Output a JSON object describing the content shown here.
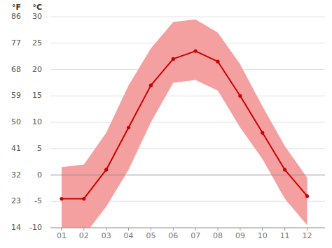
{
  "chart_data": {
    "type": "line",
    "x": [
      1,
      2,
      3,
      4,
      5,
      6,
      7,
      8,
      9,
      10,
      11,
      12
    ],
    "xlim": [
      0.5,
      12.8
    ],
    "xticks": [
      {
        "value": 1,
        "label": "01"
      },
      {
        "value": 2,
        "label": "02"
      },
      {
        "value": 3,
        "label": "03"
      },
      {
        "value": 4,
        "label": "04"
      },
      {
        "value": 5,
        "label": "05"
      },
      {
        "value": 6,
        "label": "06"
      },
      {
        "value": 7,
        "label": "07"
      },
      {
        "value": 8,
        "label": "08"
      },
      {
        "value": 9,
        "label": "09"
      },
      {
        "value": 10,
        "label": "10"
      },
      {
        "value": 11,
        "label": "11"
      },
      {
        "value": 12,
        "label": "12"
      }
    ],
    "series": [
      {
        "type": "area_range",
        "color": "#f5a0a0",
        "values": [
          1.5,
          2.0,
          8.0,
          17.0,
          24.0,
          29.0,
          29.5,
          27.0,
          21.0,
          13.0,
          5.5,
          -0.5
        ],
        "low": [
          -11.0,
          -11.5,
          -6.0,
          1.0,
          10.0,
          17.5,
          18.0,
          16.0,
          9.0,
          3.0,
          -4.5,
          -9.5
        ]
      },
      {
        "type": "line",
        "color": "#cc0000",
        "marker": "circle",
        "line_style": "solid",
        "values": [
          -4.5,
          -4.5,
          1.0,
          9.0,
          17.0,
          22.0,
          23.5,
          21.5,
          15.0,
          8.0,
          1.0,
          -4.0
        ]
      }
    ],
    "y_label": "°C",
    "ylim": [
      -10,
      30
    ],
    "yticks": [
      -10,
      -5,
      0,
      5,
      10,
      15,
      20,
      25,
      30
    ],
    "y2_label": "°F",
    "y2lim": [
      14,
      86
    ],
    "y2ticks": [
      14,
      23,
      32,
      41,
      50,
      59,
      68,
      77,
      86
    ],
    "reference_lines": [
      {
        "value": 0,
        "color": "#888888"
      }
    ],
    "grid": true
  }
}
